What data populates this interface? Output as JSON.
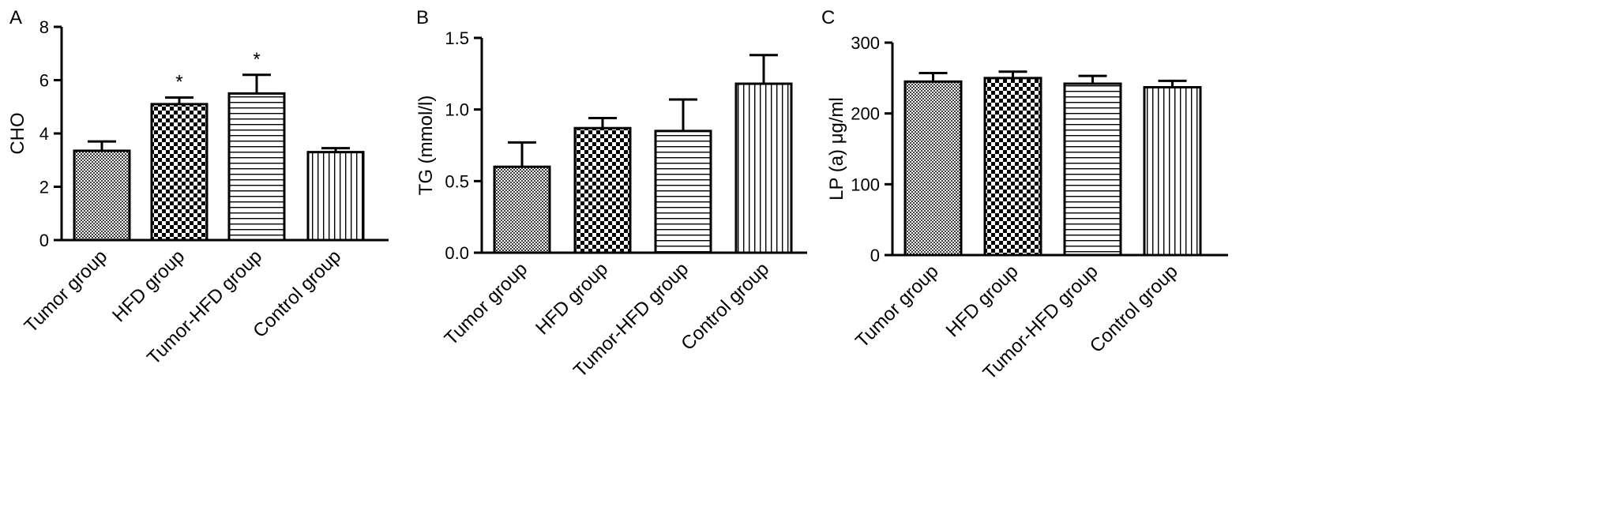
{
  "chart_data": [
    {
      "type": "bar",
      "panel_label": "A",
      "title": "",
      "xlabel": "",
      "ylabel": "CHO",
      "ylim": [
        0,
        8
      ],
      "yticks": [
        0,
        2,
        4,
        6,
        8
      ],
      "ytick_labels": [
        "0",
        "2",
        "4",
        "6",
        "8"
      ],
      "categories": [
        "Tumor group",
        "HFD group",
        "Tumor-HFD group",
        "Control group"
      ],
      "values": [
        3.35,
        5.1,
        5.5,
        3.3
      ],
      "error": [
        0.35,
        0.25,
        0.7,
        0.15
      ],
      "annotations": [
        "",
        "*",
        "*",
        ""
      ],
      "patterns": [
        "fine-check",
        "checker",
        "horizontal",
        "vertical"
      ],
      "bar_fill": "#ffffff",
      "bar_stroke": "#000000"
    },
    {
      "type": "bar",
      "panel_label": "B",
      "title": "",
      "xlabel": "",
      "ylabel": "TG (mmol/l)",
      "ylim": [
        0,
        1.5
      ],
      "yticks": [
        0,
        0.5,
        1.0,
        1.5
      ],
      "ytick_labels": [
        "0.0",
        "0.5",
        "1.0",
        "1.5"
      ],
      "categories": [
        "Tumor group",
        "HFD group",
        "Tumor-HFD group",
        "Control group"
      ],
      "values": [
        0.6,
        0.87,
        0.85,
        1.18
      ],
      "error": [
        0.17,
        0.07,
        0.22,
        0.2
      ],
      "annotations": [
        "",
        "",
        "",
        ""
      ],
      "patterns": [
        "fine-check",
        "checker",
        "horizontal",
        "vertical"
      ],
      "bar_fill": "#ffffff",
      "bar_stroke": "#000000"
    },
    {
      "type": "bar",
      "panel_label": "C",
      "title": "",
      "xlabel": "",
      "ylabel": "LP (a) μg/ml",
      "ylim": [
        0,
        300
      ],
      "yticks": [
        0,
        100,
        200,
        300
      ],
      "ytick_labels": [
        "0",
        "100",
        "200",
        "300"
      ],
      "categories": [
        "Tumor group",
        "HFD group",
        "Tumor-HFD group",
        "Control group"
      ],
      "values": [
        245,
        250,
        242,
        237
      ],
      "error": [
        12,
        9,
        11,
        9
      ],
      "annotations": [
        "",
        "",
        "",
        ""
      ],
      "patterns": [
        "fine-check",
        "checker",
        "horizontal",
        "vertical"
      ],
      "bar_fill": "#ffffff",
      "bar_stroke": "#000000"
    }
  ]
}
